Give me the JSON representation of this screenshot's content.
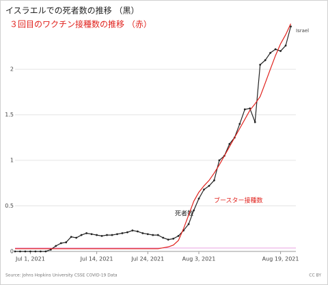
{
  "chart_data": {
    "type": "line",
    "title": "イスラエルでの死者数の推移 （黒）",
    "subtitle": "３回目のワクチン接種数の推移 （赤）",
    "annotation": "死者数",
    "source": "Source: Johns Hopkins University CSSE COVID-19 Data",
    "license": "CC BY",
    "x": [
      "2021-06-28",
      "2021-06-29",
      "2021-06-30",
      "2021-07-01",
      "2021-07-02",
      "2021-07-03",
      "2021-07-04",
      "2021-07-05",
      "2021-07-06",
      "2021-07-07",
      "2021-07-08",
      "2021-07-09",
      "2021-07-10",
      "2021-07-11",
      "2021-07-12",
      "2021-07-13",
      "2021-07-14",
      "2021-07-15",
      "2021-07-16",
      "2021-07-17",
      "2021-07-18",
      "2021-07-19",
      "2021-07-20",
      "2021-07-21",
      "2021-07-22",
      "2021-07-23",
      "2021-07-24",
      "2021-07-25",
      "2021-07-26",
      "2021-07-27",
      "2021-07-28",
      "2021-07-29",
      "2021-07-30",
      "2021-07-31",
      "2021-08-01",
      "2021-08-02",
      "2021-08-03",
      "2021-08-04",
      "2021-08-05",
      "2021-08-06",
      "2021-08-07",
      "2021-08-08",
      "2021-08-09",
      "2021-08-10",
      "2021-08-11",
      "2021-08-12",
      "2021-08-13",
      "2021-08-14",
      "2021-08-15",
      "2021-08-16",
      "2021-08-17",
      "2021-08-18",
      "2021-08-19",
      "2021-08-20",
      "2021-08-21"
    ],
    "series": [
      {
        "name": "Israel",
        "color": "#222222",
        "markers": true,
        "values": [
          0,
          0,
          0,
          0,
          0,
          0,
          0,
          0.02,
          0.06,
          0.09,
          0.1,
          0.16,
          0.15,
          0.18,
          0.2,
          0.19,
          0.18,
          0.17,
          0.18,
          0.18,
          0.19,
          0.2,
          0.21,
          0.23,
          0.22,
          0.2,
          0.19,
          0.18,
          0.18,
          0.15,
          0.13,
          0.14,
          0.17,
          0.23,
          0.3,
          0.45,
          0.58,
          0.68,
          0.72,
          0.78,
          1.0,
          1.05,
          1.18,
          1.25,
          1.4,
          1.56,
          1.57,
          1.42,
          2.05,
          2.1,
          2.18,
          2.22,
          2.2,
          2.26,
          2.47
        ]
      },
      {
        "name": "ブースター接種数",
        "color": "#e0201b",
        "markers": false,
        "values": [
          0.03,
          0.03,
          0.03,
          0.03,
          0.03,
          0.03,
          0.03,
          0.03,
          0.03,
          0.03,
          0.03,
          0.03,
          0.03,
          0.03,
          0.03,
          0.03,
          0.03,
          0.03,
          0.03,
          0.03,
          0.03,
          0.03,
          0.03,
          0.03,
          0.03,
          0.03,
          0.03,
          0.03,
          0.03,
          0.04,
          0.05,
          0.07,
          0.12,
          0.25,
          0.4,
          0.55,
          0.65,
          0.72,
          0.78,
          0.86,
          0.95,
          1.05,
          1.15,
          1.25,
          1.35,
          1.45,
          1.55,
          1.62,
          1.7,
          1.85,
          2.0,
          2.15,
          2.28,
          2.38,
          2.5
        ]
      }
    ],
    "xlim": [
      "2021-06-28",
      "2021-08-22"
    ],
    "xticks": [
      {
        "value": "2021-07-01",
        "label": "Jul 1, 2021"
      },
      {
        "value": "2021-07-14",
        "label": "Jul 14, 2021"
      },
      {
        "value": "2021-07-24",
        "label": "Jul 24, 2021"
      },
      {
        "value": "2021-08-03",
        "label": "Aug 3, 2021"
      },
      {
        "value": "2021-08-19",
        "label": "Aug 19, 2021"
      }
    ],
    "ylim": [
      0,
      2.55
    ],
    "yticks": [
      0,
      0.5,
      1,
      1.5,
      2
    ],
    "grid": true
  }
}
